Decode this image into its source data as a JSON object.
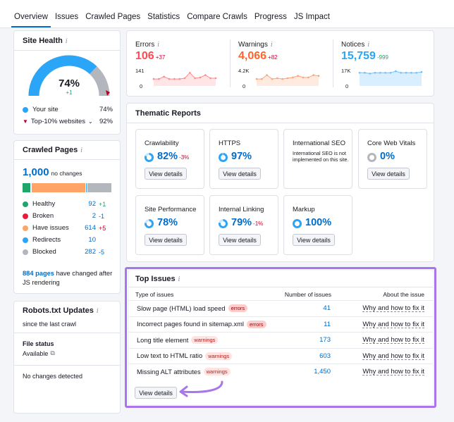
{
  "tabs": [
    "Overview",
    "Issues",
    "Crawled Pages",
    "Statistics",
    "Compare Crawls",
    "Progress",
    "JS Impact"
  ],
  "site_health": {
    "title": "Site Health",
    "info": "i",
    "percent": "74%",
    "delta": "+1",
    "gauge_fraction": 0.74,
    "legend": [
      {
        "label": "Your site",
        "value": "74%",
        "color": "#2aa5f8"
      },
      {
        "label": "Top-10% websites",
        "value": "92%",
        "color": "#b5002b"
      }
    ]
  },
  "crawled_pages": {
    "title": "Crawled Pages",
    "info": "i",
    "total": "1,000",
    "total_note": "no changes",
    "bar": [
      {
        "value": 92,
        "color": "#20a66b"
      },
      {
        "value": 2,
        "color": "#e61e3c"
      },
      {
        "value": 614,
        "color": "#ffa366"
      },
      {
        "value": 10,
        "color": "#2aa5f8"
      },
      {
        "value": 282,
        "color": "#b3b6bd"
      }
    ],
    "rows": [
      {
        "label": "Healthy",
        "value": "92",
        "delta": "+1",
        "color": "#20a66b",
        "delta_color": "#20a66b"
      },
      {
        "label": "Broken",
        "value": "2",
        "delta": "-1",
        "color": "#e61e3c",
        "delta_color": "#006dca"
      },
      {
        "label": "Have issues",
        "value": "614",
        "delta": "+5",
        "color": "#ffa366",
        "delta_color": "#d1002f"
      },
      {
        "label": "Redirects",
        "value": "10",
        "delta": "",
        "color": "#2aa5f8",
        "delta_color": "#006dca"
      },
      {
        "label": "Blocked",
        "value": "282",
        "delta": "-5",
        "color": "#b3b6bd",
        "delta_color": "#006dca"
      }
    ],
    "changed_link": "884 pages",
    "changed_text": "have changed after JS rendering"
  },
  "robots": {
    "title": "Robots.txt Updates",
    "info": "i",
    "since": "since the last crawl",
    "file_status_label": "File status",
    "file_status": "Available",
    "no_changes": "No changes detected"
  },
  "metrics": [
    {
      "label": "Errors",
      "value": "106",
      "delta": "+37",
      "color": "#ff4953",
      "delta_color": "#d1002f",
      "ymax": "141",
      "ymin": "0",
      "fill": "#ffe5e5",
      "line": "#ff8a8f",
      "series": [
        0.55,
        0.55,
        0.4,
        0.55,
        0.55,
        0.55,
        0.5,
        0.15,
        0.5,
        0.45,
        0.3,
        0.5,
        0.5
      ]
    },
    {
      "label": "Warnings",
      "value": "4,066",
      "delta": "+82",
      "color": "#ff642d",
      "delta_color": "#d1002f",
      "ymax": "4.2K",
      "ymin": "0",
      "fill": "#ffeadf",
      "line": "#ffa37a",
      "series": [
        0.55,
        0.55,
        0.3,
        0.55,
        0.5,
        0.55,
        0.5,
        0.45,
        0.35,
        0.45,
        0.45,
        0.3,
        0.35
      ]
    },
    {
      "label": "Notices",
      "value": "15,759",
      "delta": "-999",
      "color": "#2aa5f8",
      "delta_color": "#20a66b",
      "ymax": "17K",
      "ymin": "0",
      "fill": "#d9efff",
      "line": "#6cc0ff",
      "series": [
        0.15,
        0.15,
        0.2,
        0.15,
        0.15,
        0.15,
        0.15,
        0.05,
        0.15,
        0.15,
        0.15,
        0.15,
        0.1
      ]
    }
  ],
  "thematic": {
    "title": "Thematic Reports",
    "button": "View details",
    "cards": [
      {
        "title": "Crawlability",
        "value": "82%",
        "delta": "-3%",
        "fraction": 0.82,
        "note": ""
      },
      {
        "title": "HTTPS",
        "value": "97%",
        "delta": "",
        "fraction": 0.97,
        "note": ""
      },
      {
        "title": "International SEO",
        "value": "",
        "delta": "",
        "fraction": 0,
        "note": "International SEO is not implemented on this site."
      },
      {
        "title": "Core Web Vitals",
        "value": "0%",
        "delta": "",
        "fraction": 0,
        "note": "",
        "gray": true
      },
      {
        "title": "Site Performance",
        "value": "78%",
        "delta": "",
        "fraction": 0.78,
        "note": ""
      },
      {
        "title": "Internal Linking",
        "value": "79%",
        "delta": "-1%",
        "fraction": 0.79,
        "note": ""
      },
      {
        "title": "Markup",
        "value": "100%",
        "delta": "",
        "fraction": 1.0,
        "note": ""
      }
    ]
  },
  "top_issues": {
    "title": "Top Issues",
    "info": "i",
    "col_type": "Type of issues",
    "col_number": "Number of issues",
    "col_about": "About the issue",
    "rows": [
      {
        "name": "Slow page (HTML) load speed",
        "badge": "errors",
        "count": "41",
        "link": "Why and how to fix it"
      },
      {
        "name": "Incorrect pages found in sitemap.xml",
        "badge": "errors",
        "count": "11",
        "link": "Why and how to fix it"
      },
      {
        "name": "Long title element",
        "badge": "warnings",
        "count": "173",
        "link": "Why and how to fix it"
      },
      {
        "name": "Low text to HTML ratio",
        "badge": "warnings",
        "count": "603",
        "link": "Why and how to fix it"
      },
      {
        "name": "Missing ALT attributes",
        "badge": "warnings",
        "count": "1,450",
        "link": "Why and how to fix it"
      }
    ],
    "button": "View details",
    "highlight_color": "#a875ea"
  }
}
